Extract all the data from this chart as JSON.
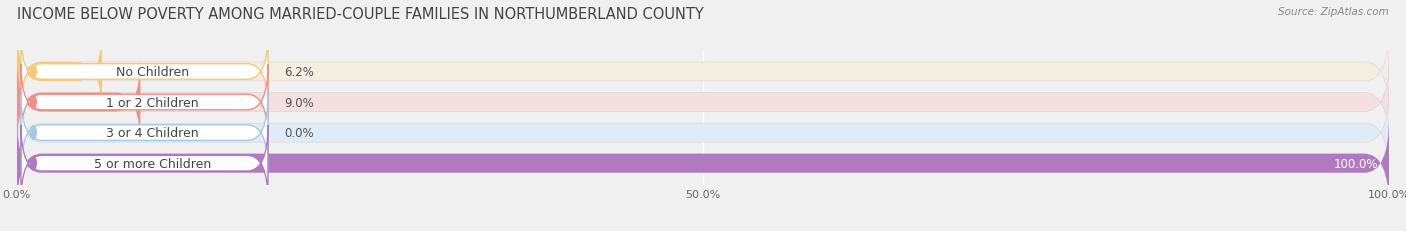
{
  "title": "INCOME BELOW POVERTY AMONG MARRIED-COUPLE FAMILIES IN NORTHUMBERLAND COUNTY",
  "source": "Source: ZipAtlas.com",
  "categories": [
    "No Children",
    "1 or 2 Children",
    "3 or 4 Children",
    "5 or more Children"
  ],
  "values": [
    6.2,
    9.0,
    0.0,
    100.0
  ],
  "bar_colors": [
    "#f5c97a",
    "#f0908a",
    "#a8c8e8",
    "#b07ac0"
  ],
  "bg_colors": [
    "#f5ede0",
    "#f5e0e0",
    "#e0ecf5",
    "#ede0f0"
  ],
  "label_pill_colors": [
    "#f5c97a",
    "#f0908a",
    "#a8c8e8",
    "#b07ac0"
  ],
  "xlim": [
    0,
    100
  ],
  "xticks": [
    0,
    50,
    100
  ],
  "xtick_labels": [
    "0.0%",
    "50.0%",
    "100.0%"
  ],
  "title_fontsize": 10.5,
  "label_fontsize": 9,
  "value_fontsize": 8.5,
  "bar_height": 0.62,
  "background_color": "#f0f0f0"
}
